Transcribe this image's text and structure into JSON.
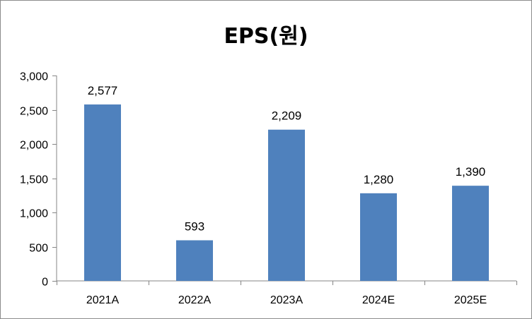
{
  "chart_data": {
    "type": "bar",
    "title": "EPS(원)",
    "categories": [
      "2021A",
      "2022A",
      "2023A",
      "2024E",
      "2025E"
    ],
    "series": [
      {
        "values": [
          2577,
          593,
          2209,
          1280,
          1390
        ],
        "color": "#4f81bd"
      }
    ],
    "data_labels": [
      "2,577",
      "593",
      "2,209",
      "1,280",
      "1,390"
    ],
    "yticks": [
      0,
      500,
      1000,
      1500,
      2000,
      2500,
      3000
    ],
    "ytick_labels": [
      "0",
      "500",
      "1,000",
      "1,500",
      "2,000",
      "2,500",
      "3,000"
    ],
    "ylim": [
      0,
      3000
    ],
    "xlabel": "",
    "ylabel": "",
    "grid": false,
    "legend": "none"
  }
}
